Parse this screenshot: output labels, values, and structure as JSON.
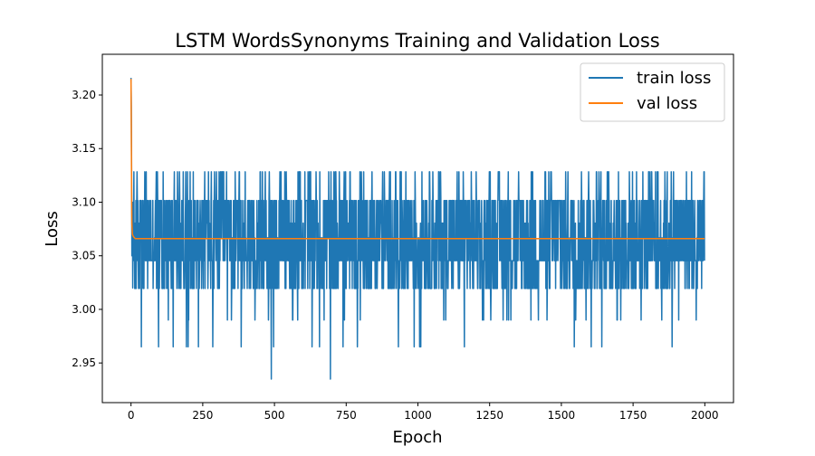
{
  "chart_data": {
    "type": "line",
    "title": "LSTM WordsSynonyms Training and Validation Loss",
    "xlabel": "Epoch",
    "ylabel": "Loss",
    "xlim": [
      -100,
      2100
    ],
    "ylim": [
      2.913,
      3.238
    ],
    "xticks": [
      0,
      250,
      500,
      750,
      1000,
      1250,
      1500,
      1750,
      2000
    ],
    "yticks": [
      2.95,
      3.0,
      3.05,
      3.1,
      3.15,
      3.2
    ],
    "ytick_labels": [
      "2.95",
      "3.00",
      "3.05",
      "3.10",
      "3.15",
      "3.20"
    ],
    "grid": false,
    "legend_position": "top-right",
    "colors": {
      "train": "#1f77b4",
      "val": "#ff7f0e"
    },
    "series": [
      {
        "name": "train loss",
        "color": "#1f77b4",
        "epochs": 2000,
        "initial": [
          3.216,
          3.19,
          3.13,
          3.05,
          3.08,
          3.1,
          3.02
        ],
        "levels": [
          3.0195,
          3.0454,
          3.0667,
          3.0805,
          3.1016,
          3.1284
        ],
        "level_weights": [
          0.19,
          0.27,
          0.1,
          0.08,
          0.28,
          0.08
        ],
        "rare_lows": [
          2.99,
          2.965
        ],
        "extremes": [
          {
            "x": 489,
            "y": 2.935
          },
          {
            "x": 695,
            "y": 2.935
          }
        ]
      },
      {
        "name": "val loss",
        "color": "#ff7f0e",
        "x": [
          0,
          1,
          2,
          3,
          5,
          8,
          15,
          30,
          100,
          500,
          1000,
          1500,
          1999
        ],
        "y": [
          3.215,
          3.17,
          3.11,
          3.08,
          3.07,
          3.068,
          3.066,
          3.066,
          3.066,
          3.066,
          3.066,
          3.066,
          3.066
        ]
      }
    ]
  }
}
